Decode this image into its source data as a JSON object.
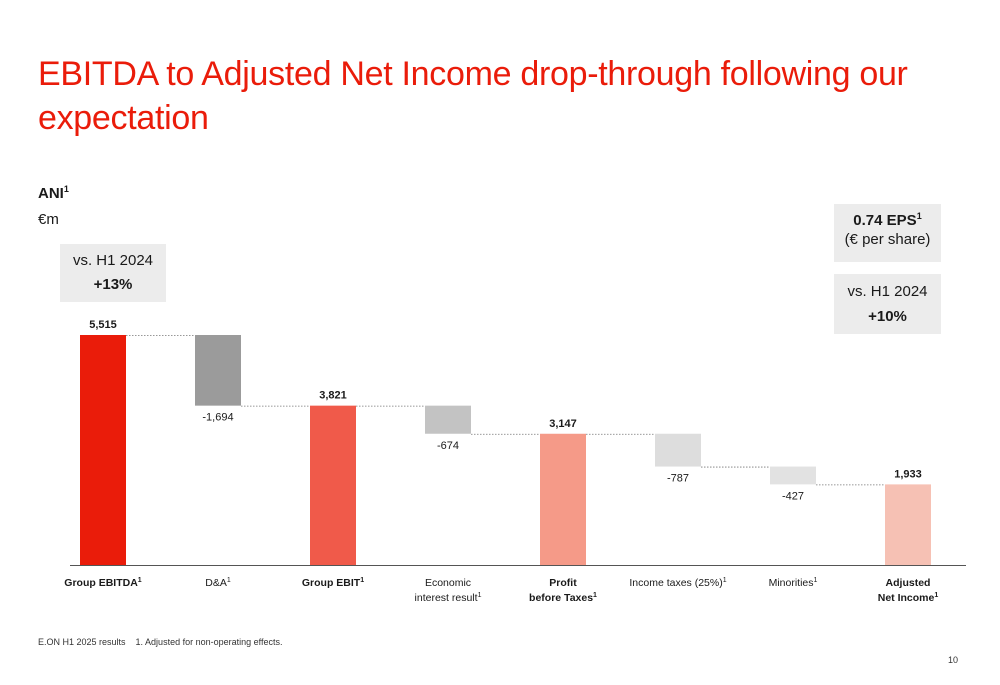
{
  "title": "EBITDA to Adjusted Net Income drop-through following our expectation",
  "ani_label": "ANI",
  "ani_sup": "1",
  "unit": "€m",
  "ani_box": {
    "line1": "vs. H1 2024",
    "value": "+13%"
  },
  "eps_box": {
    "value": "0.74 EPS",
    "sup": "1",
    "line2": "(€ per share)"
  },
  "eps_vs_box": {
    "line1": "vs. H1 2024",
    "value": "+10%"
  },
  "footer": "E.ON H1 2025 results    1. Adjusted for non-operating effects.",
  "page_number": "10",
  "colors": {
    "title": "#ea1c0a",
    "ebitda": "#ea1c0a",
    "ebit": "#f05a4a",
    "pbt": "#f59a88",
    "ani": "#f6c1b4",
    "da": "#9b9b9b",
    "interest": "#c3c3c3",
    "taxes": "#dddddd",
    "minorities": "#e2e2e2"
  },
  "chart_data": {
    "type": "waterfall",
    "ylim": [
      0,
      5515
    ],
    "categories": [
      {
        "lines": [
          "Group EBITDA"
        ],
        "sup": "1",
        "bold": true,
        "kind": "total",
        "value": 5515,
        "label": "5,515",
        "color_key": "ebitda"
      },
      {
        "lines": [
          "D&A"
        ],
        "sup": "1",
        "bold": false,
        "kind": "delta",
        "value": -1694,
        "label": "-1,694",
        "color_key": "da"
      },
      {
        "lines": [
          "Group EBIT"
        ],
        "sup": "1",
        "bold": true,
        "kind": "total",
        "value": 3821,
        "label": "3,821",
        "color_key": "ebit"
      },
      {
        "lines": [
          "Economic",
          "interest result"
        ],
        "sup": "1",
        "bold": false,
        "kind": "delta",
        "value": -674,
        "label": "-674",
        "color_key": "interest"
      },
      {
        "lines": [
          "Profit",
          "before Taxes"
        ],
        "sup": "1",
        "bold": true,
        "kind": "total",
        "value": 3147,
        "label": "3,147",
        "color_key": "pbt"
      },
      {
        "lines": [
          "Income taxes (25%)"
        ],
        "sup": "1",
        "bold": false,
        "kind": "delta",
        "value": -787,
        "label": "-787",
        "color_key": "taxes"
      },
      {
        "lines": [
          "Minorities"
        ],
        "sup": "1",
        "bold": false,
        "kind": "delta",
        "value": -427,
        "label": "-427",
        "color_key": "minorities"
      },
      {
        "lines": [
          "Adjusted",
          "Net Income"
        ],
        "sup": "1",
        "bold": true,
        "kind": "total",
        "value": 1933,
        "label": "1,933",
        "color_key": "ani"
      }
    ]
  }
}
